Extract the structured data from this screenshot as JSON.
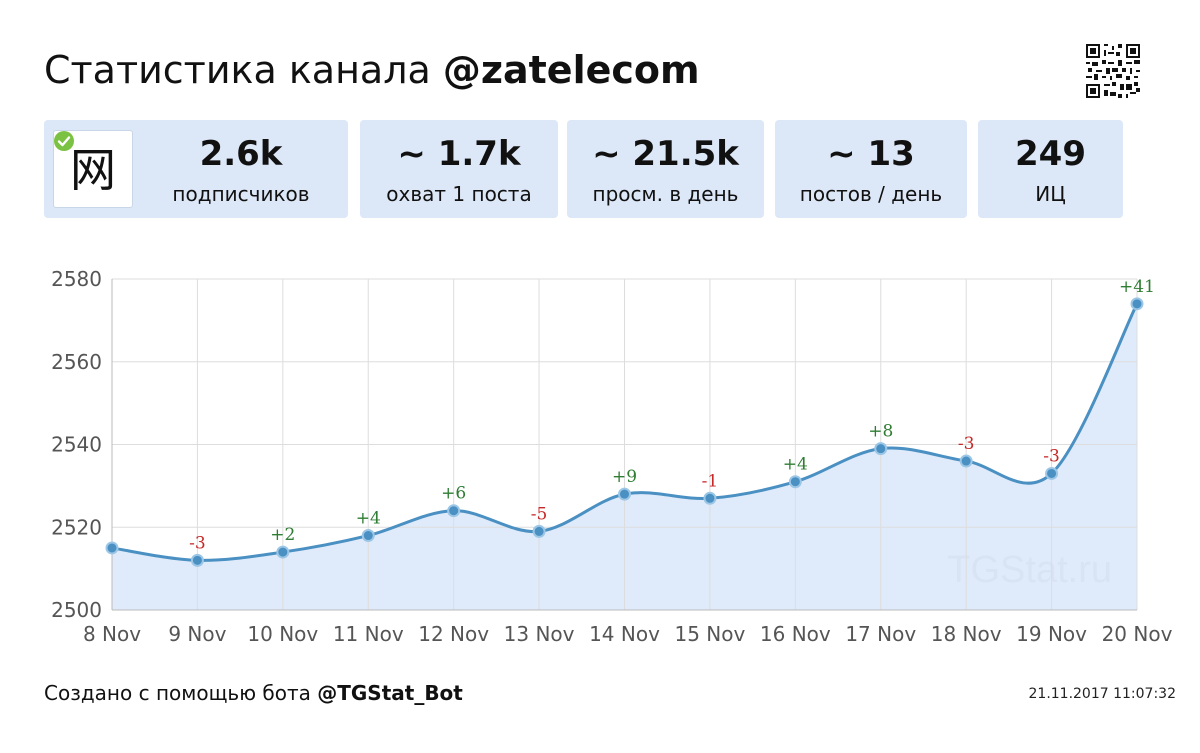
{
  "header": {
    "title_prefix": "Статистика канала",
    "channel_handle": "@zatelecom"
  },
  "channel": {
    "avatar_glyph": "网",
    "verified_badge_icon": "verified-check-icon"
  },
  "stats": [
    {
      "value": "2.6k",
      "label": "подписчиков"
    },
    {
      "value": "~ 1.7k",
      "label": "охват 1 поста"
    },
    {
      "value": "~ 21.5k",
      "label": "просм. в день"
    },
    {
      "value": "~ 13",
      "label": "постов / день"
    },
    {
      "value": "249",
      "label": "ИЦ"
    }
  ],
  "watermark": "TGStat.ru",
  "footer": {
    "created_with": "Создано с помощью бота",
    "bot_handle": "@TGStat_Bot",
    "timestamp": "21.11.2017 11:07:32"
  },
  "colors": {
    "card_bg": "#dce7f7",
    "line": "#4a90c2",
    "area_fill": "#dde9fb",
    "gain": "#2e7d32",
    "loss": "#c62828",
    "grid": "#dddddd"
  },
  "chart_data": {
    "type": "area",
    "x": [
      "8 Nov",
      "9 Nov",
      "10 Nov",
      "11 Nov",
      "12 Nov",
      "13 Nov",
      "14 Nov",
      "15 Nov",
      "16 Nov",
      "17 Nov",
      "18 Nov",
      "19 Nov",
      "20 Nov"
    ],
    "series": [
      {
        "values": [
          2515,
          2512,
          2514,
          2518,
          2524,
          2519,
          2528,
          2527,
          2531,
          2539,
          2536,
          2533,
          2574
        ]
      }
    ],
    "annotations": [
      "",
      "-3",
      "+2",
      "+4",
      "+6",
      "-5",
      "+9",
      "-1",
      "+4",
      "+8",
      "-3",
      "-3",
      "+41"
    ],
    "yticks": [
      2500,
      2520,
      2540,
      2560,
      2580
    ],
    "ylim": [
      2500,
      2580
    ],
    "grid": true,
    "title": "",
    "xlabel": "",
    "ylabel": ""
  }
}
